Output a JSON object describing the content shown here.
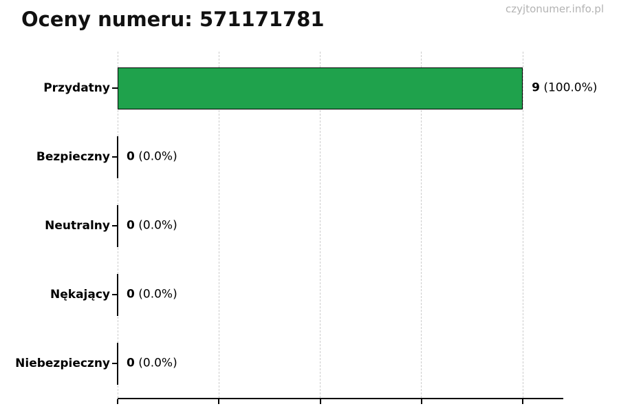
{
  "header": {
    "title": "Oceny numeru: 571171781",
    "watermark": "czyjtonumer.info.pl"
  },
  "chart_data": {
    "type": "bar",
    "orientation": "horizontal",
    "title": "Oceny numeru: 571171781",
    "categories": [
      "Przydatny",
      "Bezpieczny",
      "Neutralny",
      "Nękający",
      "Niebezpieczny"
    ],
    "values": [
      9,
      0,
      0,
      0,
      0
    ],
    "percents": [
      100.0,
      0.0,
      0.0,
      0.0,
      0.0
    ],
    "value_strings": [
      "9",
      "0",
      "0",
      "0",
      "0"
    ],
    "percent_strings": [
      "(100.0%)",
      "(0.0%)",
      "(0.0%)",
      "(0.0%)",
      "(0.0%)"
    ],
    "xlim": [
      0,
      9.9
    ],
    "x_ticks": [
      0,
      2.25,
      4.5,
      6.75,
      9
    ],
    "grid": "vertical-dashed",
    "legend": "none",
    "bar_color": "#1fa24c",
    "bar_edge_color": "#000000",
    "gridline_color": "#cccccc",
    "axis_color": "#000000",
    "watermark_color": "#b3b3b3"
  }
}
